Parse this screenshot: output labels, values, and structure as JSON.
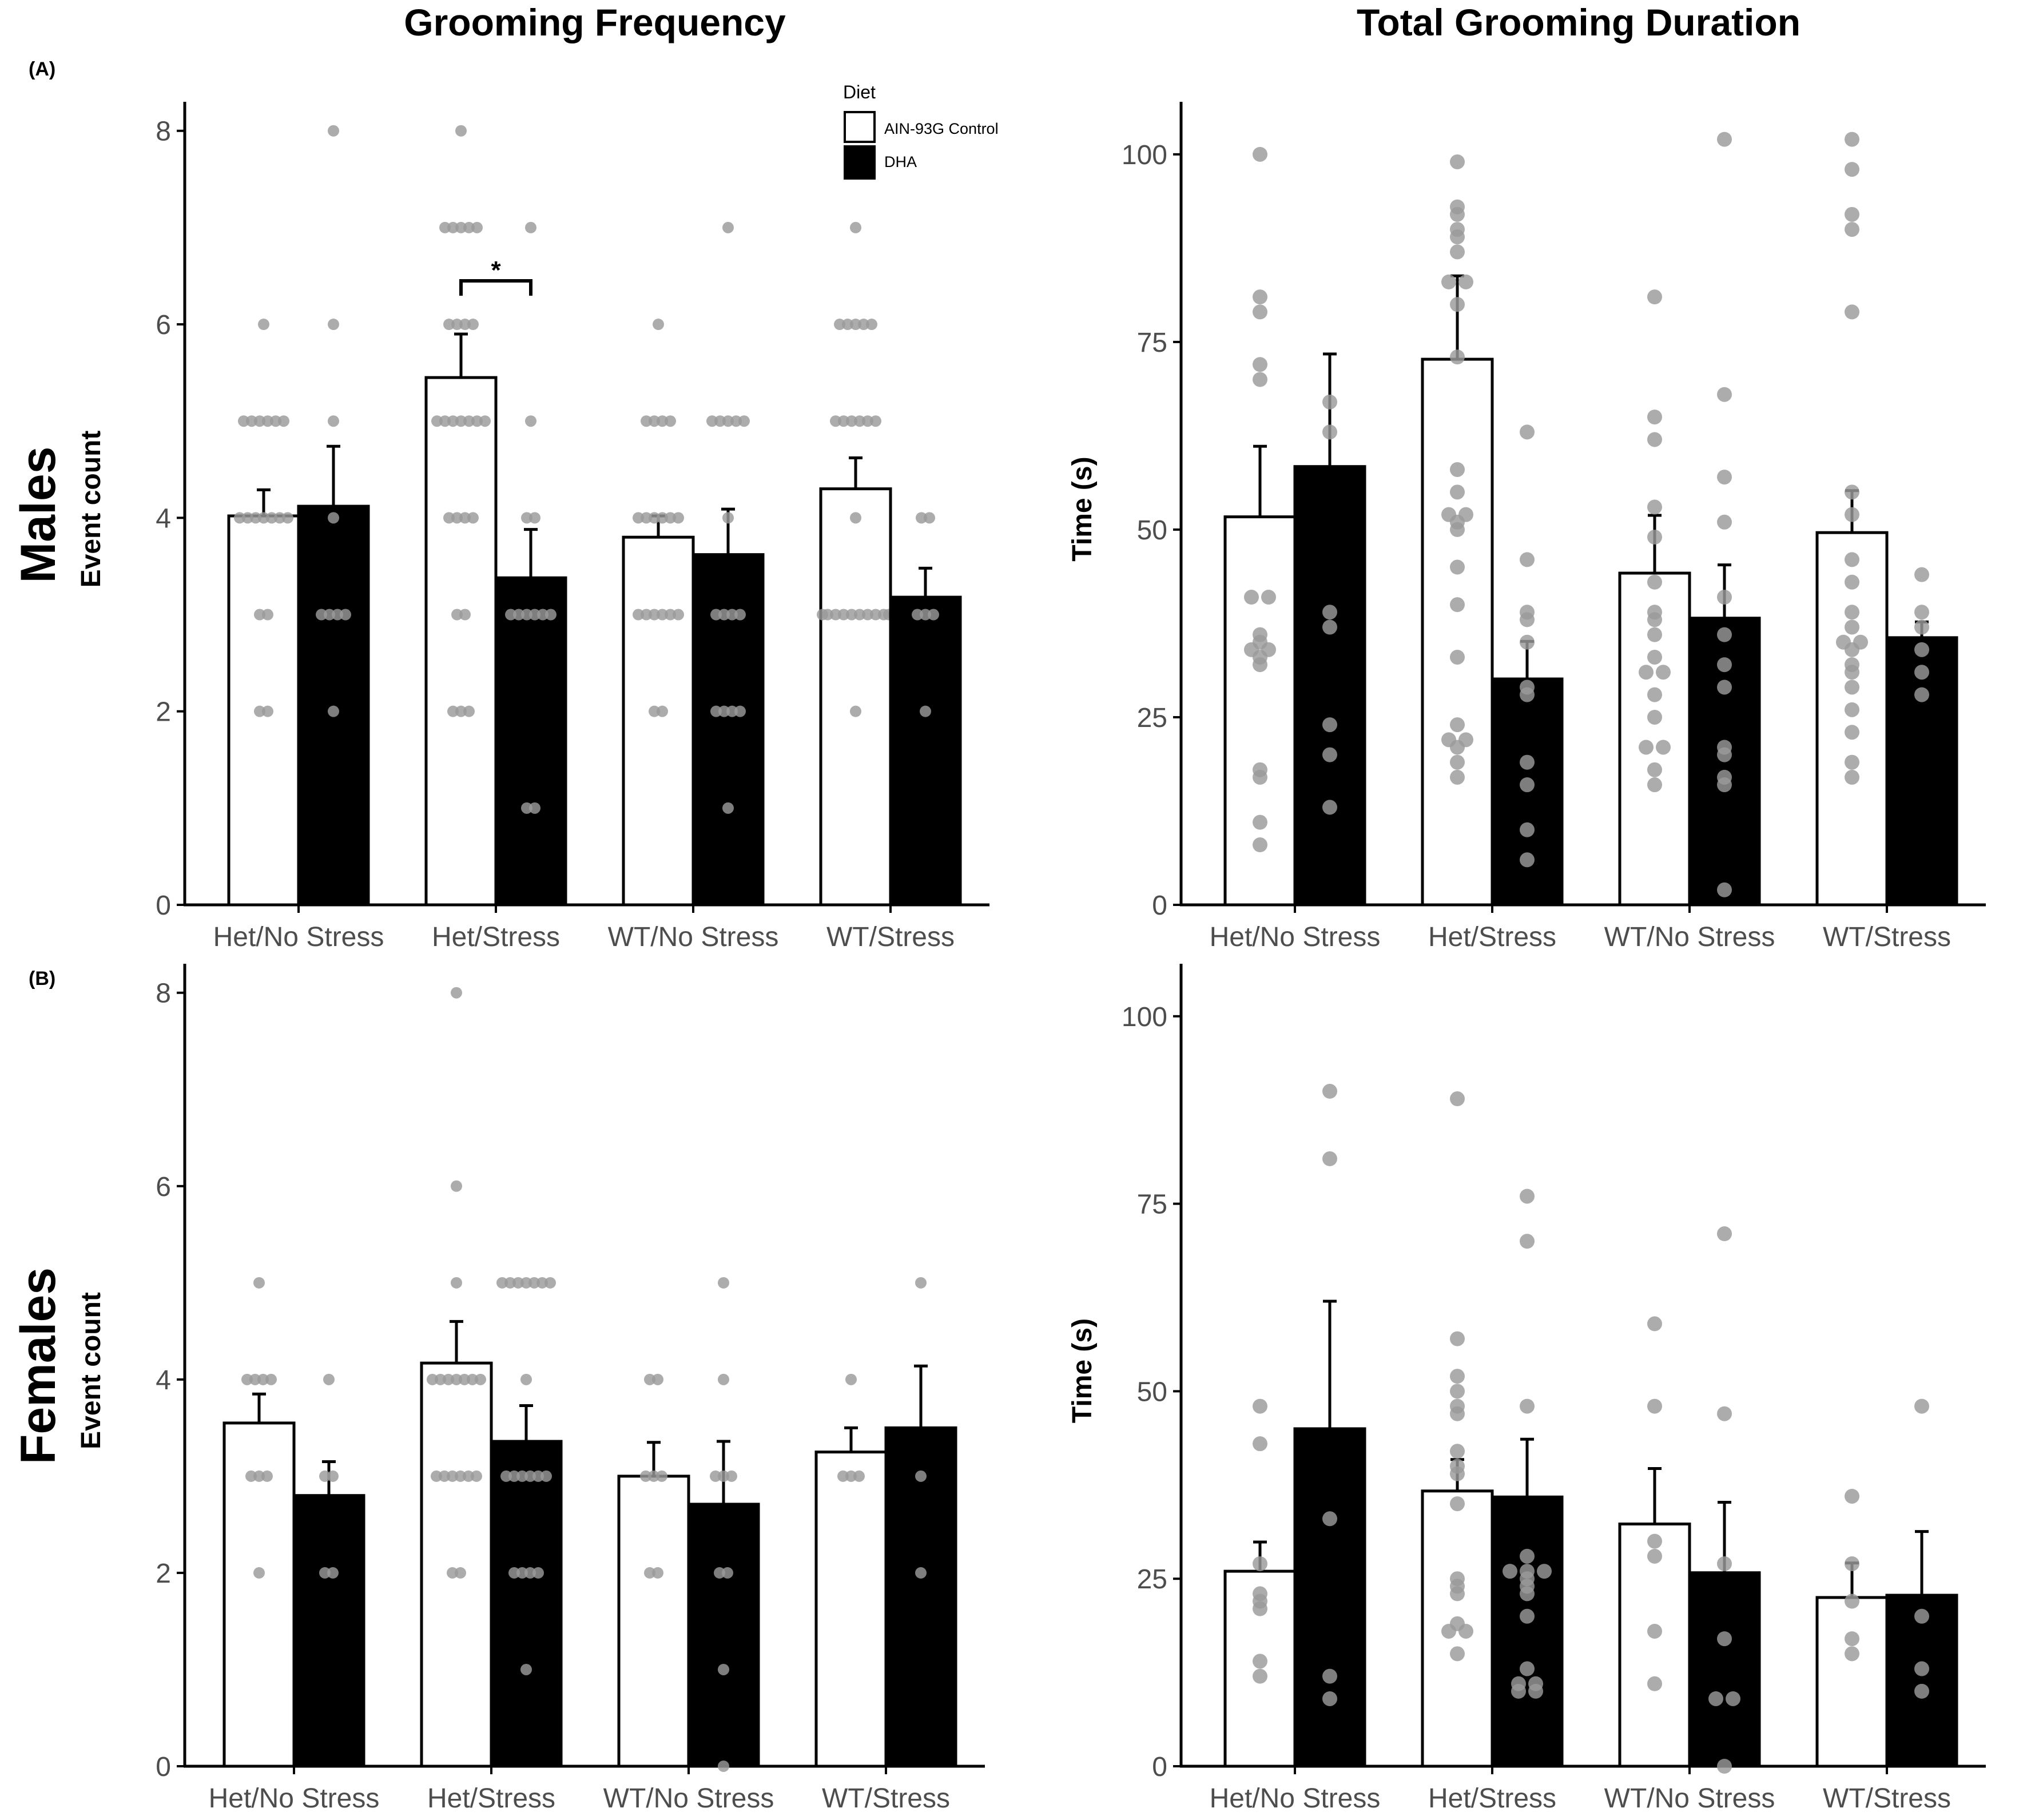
{
  "figure": {
    "col_titles": [
      "Grooming Frequency",
      "Total Grooming Duration"
    ],
    "row_titles": [
      "Males",
      "Females"
    ],
    "panel_labels": [
      "(A)",
      "(B)"
    ]
  },
  "legend": {
    "title": "Diet",
    "items": [
      {
        "label": "AIN-93G Control",
        "color": "#ffffff"
      },
      {
        "label": "DHA",
        "color": "#000000"
      }
    ]
  },
  "colors": {
    "point": "#9a9a9a",
    "bar_edge": "#000000",
    "axis": "#000000",
    "text": "#000000",
    "tick_text": "#4d4d4d"
  },
  "chart_data": [
    {
      "id": "males-frequency",
      "type": "bar",
      "title": "Grooming Frequency",
      "row": "Males",
      "ylabel": "Event count",
      "ylim": [
        0,
        8.3
      ],
      "yticks": [
        0,
        2,
        4,
        6,
        8
      ],
      "categories": [
        "Het/No Stress",
        "Het/Stress",
        "WT/No Stress",
        "WT/Stress"
      ],
      "series": [
        {
          "name": "AIN-93G Control",
          "values": [
            4.02,
            5.45,
            3.8,
            4.3
          ],
          "errors": [
            0.27,
            0.45,
            0.22,
            0.32
          ],
          "points": [
            [
              6,
              5,
              5,
              5,
              5,
              5,
              5,
              4,
              4,
              4,
              4,
              4,
              4,
              4,
              3,
              3,
              2,
              2
            ],
            [
              8,
              7,
              7,
              7,
              7,
              7,
              6,
              6,
              6,
              6,
              5,
              5,
              5,
              5,
              5,
              5,
              5,
              4,
              4,
              4,
              4,
              3,
              3,
              2,
              2,
              2
            ],
            [
              6,
              5,
              5,
              5,
              5,
              4,
              4,
              4,
              4,
              4,
              4,
              3,
              3,
              3,
              3,
              3,
              3,
              2,
              2
            ],
            [
              7,
              6,
              6,
              6,
              6,
              6,
              5,
              5,
              5,
              5,
              5,
              5,
              4,
              3,
              3,
              3,
              3,
              3,
              3,
              3,
              3,
              3,
              3,
              2
            ]
          ]
        },
        {
          "name": "DHA",
          "values": [
            4.12,
            3.38,
            3.62,
            3.18
          ],
          "errors": [
            0.62,
            0.5,
            0.47,
            0.3
          ],
          "points": [
            [
              8,
              6,
              5,
              4,
              3,
              3,
              3,
              3,
              2
            ],
            [
              7,
              5,
              4,
              4,
              3,
              3,
              3,
              3,
              3,
              3,
              1,
              1
            ],
            [
              7,
              5,
              5,
              5,
              5,
              5,
              4,
              3,
              3,
              3,
              3,
              2,
              2,
              2,
              2,
              1
            ],
            [
              4,
              4,
              3,
              3,
              3,
              2
            ]
          ]
        }
      ],
      "significance": [
        {
          "category": "Het/Stress",
          "label": "*",
          "y": 6.45
        }
      ]
    },
    {
      "id": "males-duration",
      "type": "bar",
      "title": "Total Grooming Duration",
      "row": "Males",
      "ylabel": "Time (s)",
      "ylim": [
        0,
        107
      ],
      "yticks": [
        0,
        25,
        50,
        75,
        100
      ],
      "categories": [
        "Het/No Stress",
        "Het/Stress",
        "WT/No Stress",
        "WT/Stress"
      ],
      "series": [
        {
          "name": "AIN-93G Control",
          "values": [
            51.7,
            72.7,
            44.2,
            49.6
          ],
          "errors": [
            9.4,
            11.1,
            7.7,
            5.6
          ],
          "points": [
            [
              100,
              81,
              79,
              72,
              70,
              41,
              41,
              36,
              35,
              34,
              34,
              33,
              32,
              18,
              17,
              11,
              8
            ],
            [
              99,
              93,
              92,
              90,
              89,
              87,
              83,
              83,
              80,
              73,
              58,
              55,
              52,
              52,
              51,
              50,
              45,
              40,
              33,
              24,
              22,
              22,
              21,
              19,
              17
            ],
            [
              81,
              65,
              62,
              53,
              49,
              43,
              39,
              38,
              36,
              33,
              31,
              31,
              28,
              25,
              21,
              21,
              18,
              16
            ],
            [
              102,
              98,
              92,
              90,
              79,
              55,
              52,
              46,
              43,
              39,
              37,
              35,
              35,
              34,
              32,
              31,
              29,
              26,
              23,
              19,
              17
            ]
          ]
        },
        {
          "name": "DHA",
          "values": [
            58.4,
            30.1,
            38.2,
            35.6
          ],
          "errors": [
            15,
            5,
            7.1,
            2.1
          ],
          "points": [
            [
              67,
              63,
              39,
              37,
              24,
              20,
              13
            ],
            [
              63,
              46,
              39,
              38,
              35,
              29,
              28,
              19,
              16,
              10,
              6
            ],
            [
              102,
              68,
              57,
              51,
              41,
              36,
              32,
              29,
              21,
              20,
              17,
              16,
              2
            ],
            [
              44,
              39,
              37,
              34,
              31,
              28
            ]
          ]
        }
      ]
    },
    {
      "id": "females-frequency",
      "type": "bar",
      "title": "Grooming Frequency",
      "row": "Females",
      "ylabel": "Event count",
      "ylim": [
        0,
        8.3
      ],
      "yticks": [
        0,
        2,
        4,
        6,
        8
      ],
      "categories": [
        "Het/No Stress",
        "Het/Stress",
        "WT/No Stress",
        "WT/Stress"
      ],
      "series": [
        {
          "name": "AIN-93G Control",
          "values": [
            3.55,
            4.17,
            3.0,
            3.25
          ],
          "errors": [
            0.3,
            0.43,
            0.35,
            0.25
          ],
          "points": [
            [
              5,
              4,
              4,
              4,
              4,
              3,
              3,
              3,
              2
            ],
            [
              8,
              6,
              5,
              4,
              4,
              4,
              4,
              4,
              4,
              4,
              3,
              3,
              3,
              3,
              3,
              3,
              2,
              2
            ],
            [
              4,
              4,
              3,
              3,
              3,
              2,
              2
            ],
            [
              4,
              3,
              3,
              3
            ]
          ]
        },
        {
          "name": "DHA",
          "values": [
            2.8,
            3.36,
            2.71,
            3.5
          ],
          "errors": [
            0.35,
            0.37,
            0.65,
            0.64
          ],
          "points": [
            [
              4,
              3,
              3,
              2,
              2
            ],
            [
              5,
              5,
              5,
              5,
              5,
              5,
              5,
              4,
              3,
              3,
              3,
              3,
              3,
              3,
              2,
              2,
              2,
              2,
              1
            ],
            [
              5,
              4,
              3,
              3,
              3,
              2,
              2,
              1,
              0
            ],
            [
              5,
              3,
              2
            ]
          ]
        }
      ]
    },
    {
      "id": "females-duration",
      "type": "bar",
      "title": "Total Grooming Duration",
      "row": "Females",
      "ylabel": "Time (s)",
      "ylim": [
        0,
        107
      ],
      "yticks": [
        0,
        25,
        50,
        75,
        100
      ],
      "categories": [
        "Het/No Stress",
        "Het/Stress",
        "WT/No Stress",
        "WT/Stress"
      ],
      "series": [
        {
          "name": "AIN-93G Control",
          "values": [
            26,
            36.7,
            32.3,
            22.5
          ],
          "errors": [
            3.9,
            4.2,
            7.4,
            4.6
          ],
          "points": [
            [
              48,
              43,
              27,
              23,
              22,
              21,
              14,
              12
            ],
            [
              89,
              57,
              52,
              50,
              48,
              47,
              42,
              40,
              39,
              35,
              25,
              24,
              23,
              19,
              18,
              18,
              15
            ],
            [
              59,
              48,
              30,
              28,
              18,
              11
            ],
            [
              36,
              27,
              22,
              17,
              15
            ]
          ]
        },
        {
          "name": "DHA",
          "values": [
            45,
            35.9,
            25.8,
            22.8
          ],
          "errors": [
            17,
            7.7,
            9.4,
            8.5
          ],
          "points": [
            [
              90,
              81,
              33,
              12,
              9
            ],
            [
              76,
              70,
              48,
              28,
              26,
              26,
              26,
              25,
              24,
              23,
              20,
              13,
              11,
              11,
              10,
              10
            ],
            [
              71,
              47,
              27,
              17,
              9,
              9,
              0
            ],
            [
              48,
              20,
              13,
              10
            ]
          ]
        }
      ]
    }
  ]
}
